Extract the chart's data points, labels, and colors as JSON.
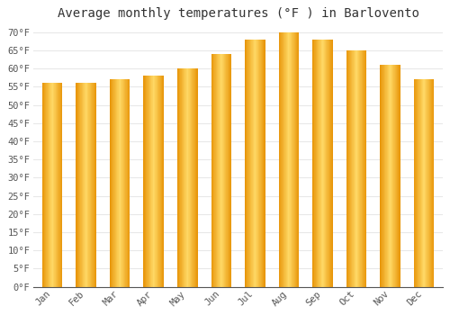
{
  "title": "Average monthly temperatures (°F ) in Barlovento",
  "months": [
    "Jan",
    "Feb",
    "Mar",
    "Apr",
    "May",
    "Jun",
    "Jul",
    "Aug",
    "Sep",
    "Oct",
    "Nov",
    "Dec"
  ],
  "values": [
    56,
    56,
    57,
    58,
    60,
    64,
    68,
    70,
    68,
    65,
    61,
    57
  ],
  "bar_color_center": "#FFD966",
  "bar_color_edge": "#E8960A",
  "background_color": "#ffffff",
  "grid_color": "#e8e8e8",
  "ylim": [
    0,
    72
  ],
  "yticks": [
    0,
    5,
    10,
    15,
    20,
    25,
    30,
    35,
    40,
    45,
    50,
    55,
    60,
    65,
    70
  ],
  "title_fontsize": 10,
  "tick_fontsize": 7.5,
  "axis_color": "#555555",
  "bar_width": 0.6
}
